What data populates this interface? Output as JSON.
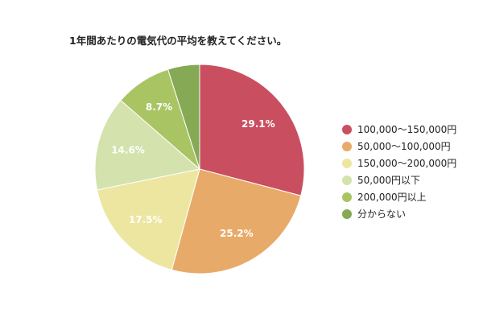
{
  "chart_data": {
    "type": "pie",
    "title": "1年間あたりの電気代の平均を教えてください。",
    "categories": [
      "100,000～150,000円",
      "50,000～100,000円",
      "150,000～200,000円",
      "50,000円以下",
      "200,000円以上",
      "分からない"
    ],
    "values": [
      29.1,
      25.2,
      17.5,
      14.6,
      8.7,
      4.9
    ],
    "value_labels": [
      "29.1%",
      "25.2%",
      "17.5%",
      "14.6%",
      "8.7%",
      ""
    ],
    "colors": [
      "#c94f60",
      "#e8aa68",
      "#ede6a1",
      "#d4e2ad",
      "#a9c563",
      "#86a956"
    ],
    "legend_position": "right",
    "start": "top, clockwise"
  }
}
